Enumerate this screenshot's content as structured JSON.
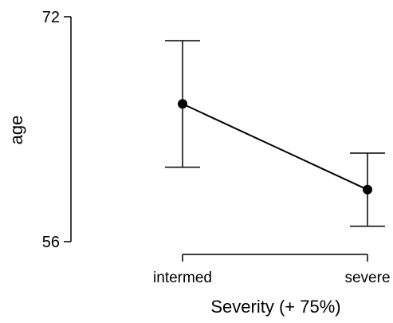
{
  "chart_data": {
    "type": "line",
    "categories": [
      "intermed",
      "severe"
    ],
    "series": [
      {
        "values": [
          65.8,
          59.7
        ],
        "ci_lower": [
          61.3,
          57.1
        ],
        "ci_upper": [
          70.3,
          62.3
        ]
      }
    ],
    "xlabel": "Severity (+ 75%)",
    "ylabel": "age",
    "ylim": [
      56,
      72
    ],
    "yticks": [
      56,
      72
    ],
    "y_tick_labels": [
      "56",
      "72"
    ],
    "grid": false,
    "legend": "none",
    "colors": {
      "line": "#000000",
      "point": "#000000",
      "axis": "#000000"
    }
  }
}
